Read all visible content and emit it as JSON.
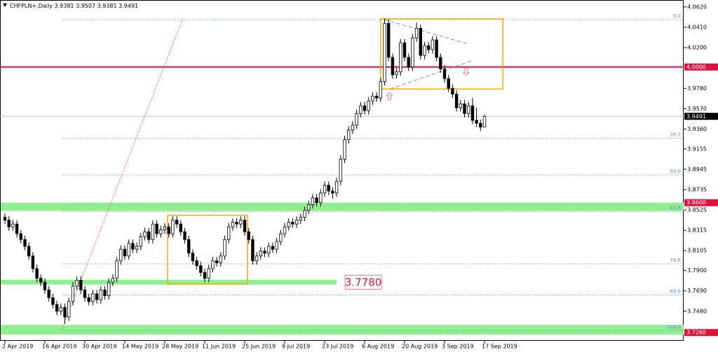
{
  "chart_data": {
    "type": "candlestick",
    "title": "CHFPLN+,Daily",
    "categories": [
      "2 Apr 2019",
      null,
      null,
      null,
      null,
      null,
      null,
      null,
      null,
      null,
      "16 Apr 2019",
      null,
      null,
      null,
      null,
      null,
      null,
      null,
      null,
      null,
      "30 Apr 2019",
      null,
      null,
      null,
      null,
      null,
      null,
      null,
      null,
      null,
      "14 May 2019",
      null,
      null,
      null,
      null,
      null,
      null,
      null,
      null,
      null,
      "28 May 2019",
      null,
      null,
      null,
      null,
      null,
      null,
      null,
      null,
      null,
      "11 Jun 2019",
      null,
      null,
      null,
      null,
      null,
      null,
      null,
      null,
      null,
      "25 Jun 2019",
      null,
      null,
      null,
      null,
      null,
      null,
      null,
      null,
      null,
      "9 Jul 2019",
      null,
      null,
      null,
      null,
      null,
      null,
      null,
      null,
      null,
      "23 Jul 2019",
      null,
      null,
      null,
      null,
      null,
      null,
      null,
      null,
      null,
      "6 Aug 2019",
      null,
      null,
      null,
      null,
      null,
      null,
      null,
      null,
      null,
      "20 Aug 2019",
      null,
      null,
      null,
      null,
      null,
      null,
      null,
      null,
      null,
      "3 Sep 2019",
      null,
      null,
      null,
      null,
      null,
      null,
      null,
      null,
      null,
      "17 Sep 2019"
    ],
    "candles": [
      [
        3.845,
        3.849,
        3.838,
        3.842
      ],
      [
        3.842,
        3.846,
        3.831,
        3.835
      ],
      [
        3.835,
        3.842,
        3.831,
        3.838
      ],
      [
        3.838,
        3.842,
        3.824,
        3.828
      ],
      [
        3.828,
        3.832,
        3.818,
        3.822
      ],
      [
        3.822,
        3.826,
        3.811,
        3.815
      ],
      [
        3.815,
        3.819,
        3.801,
        3.805
      ],
      [
        3.805,
        3.809,
        3.788,
        3.792
      ],
      [
        3.792,
        3.796,
        3.778,
        3.782
      ],
      [
        3.782,
        3.786,
        3.774,
        3.778
      ],
      [
        3.778,
        3.782,
        3.766,
        3.77
      ],
      [
        3.77,
        3.774,
        3.758,
        3.762
      ],
      [
        3.762,
        3.766,
        3.751,
        3.755
      ],
      [
        3.755,
        3.759,
        3.744,
        3.748
      ],
      [
        3.748,
        3.756,
        3.744,
        3.752
      ],
      [
        3.752,
        3.756,
        3.735,
        3.742
      ],
      [
        3.742,
        3.762,
        3.738,
        3.758
      ],
      [
        3.758,
        3.778,
        3.754,
        3.774
      ],
      [
        3.774,
        3.784,
        3.77,
        3.78
      ],
      [
        3.78,
        3.784,
        3.766,
        3.77
      ],
      [
        3.77,
        3.774,
        3.758,
        3.762
      ],
      [
        3.762,
        3.766,
        3.754,
        3.758
      ],
      [
        3.758,
        3.77,
        3.754,
        3.766
      ],
      [
        3.766,
        3.77,
        3.756,
        3.76
      ],
      [
        3.76,
        3.774,
        3.756,
        3.77
      ],
      [
        3.77,
        3.774,
        3.76,
        3.764
      ],
      [
        3.764,
        3.782,
        3.76,
        3.778
      ],
      [
        3.778,
        3.786,
        3.774,
        3.782
      ],
      [
        3.782,
        3.804,
        3.778,
        3.8
      ],
      [
        3.8,
        3.816,
        3.796,
        3.812
      ],
      [
        3.812,
        3.816,
        3.801,
        3.805
      ],
      [
        3.805,
        3.822,
        3.801,
        3.818
      ],
      [
        3.818,
        3.822,
        3.808,
        3.812
      ],
      [
        3.812,
        3.819,
        3.808,
        3.815
      ],
      [
        3.815,
        3.829,
        3.811,
        3.825
      ],
      [
        3.825,
        3.834,
        3.821,
        3.83
      ],
      [
        3.83,
        3.834,
        3.818,
        3.822
      ],
      [
        3.822,
        3.842,
        3.818,
        3.838
      ],
      [
        3.838,
        3.842,
        3.824,
        3.828
      ],
      [
        3.828,
        3.836,
        3.824,
        3.832
      ],
      [
        3.832,
        3.839,
        3.828,
        3.835
      ],
      [
        3.835,
        3.839,
        3.824,
        3.828
      ],
      [
        3.828,
        3.846,
        3.824,
        3.842
      ],
      [
        3.842,
        3.846,
        3.834,
        3.838
      ],
      [
        3.838,
        3.842,
        3.826,
        3.83
      ],
      [
        3.83,
        3.834,
        3.818,
        3.822
      ],
      [
        3.822,
        3.826,
        3.804,
        3.808
      ],
      [
        3.808,
        3.812,
        3.796,
        3.8
      ],
      [
        3.8,
        3.804,
        3.791,
        3.795
      ],
      [
        3.795,
        3.799,
        3.784,
        3.788
      ],
      [
        3.788,
        3.792,
        3.778,
        3.782
      ],
      [
        3.782,
        3.796,
        3.778,
        3.792
      ],
      [
        3.792,
        3.804,
        3.788,
        3.8
      ],
      [
        3.8,
        3.804,
        3.794,
        3.798
      ],
      [
        3.798,
        3.809,
        3.794,
        3.805
      ],
      [
        3.805,
        3.826,
        3.801,
        3.822
      ],
      [
        3.822,
        3.839,
        3.818,
        3.835
      ],
      [
        3.835,
        3.844,
        3.831,
        3.84
      ],
      [
        3.84,
        3.844,
        3.834,
        3.838
      ],
      [
        3.838,
        3.846,
        3.834,
        3.842
      ],
      [
        3.842,
        3.846,
        3.826,
        3.83
      ],
      [
        3.83,
        3.834,
        3.818,
        3.822
      ],
      [
        3.822,
        3.826,
        3.796,
        3.8
      ],
      [
        3.8,
        3.809,
        3.796,
        3.805
      ],
      [
        3.805,
        3.814,
        3.801,
        3.81
      ],
      [
        3.81,
        3.814,
        3.804,
        3.808
      ],
      [
        3.808,
        3.819,
        3.804,
        3.815
      ],
      [
        3.815,
        3.819,
        3.808,
        3.812
      ],
      [
        3.812,
        3.824,
        3.808,
        3.82
      ],
      [
        3.82,
        3.832,
        3.816,
        3.828
      ],
      [
        3.828,
        3.839,
        3.824,
        3.835
      ],
      [
        3.835,
        3.844,
        3.831,
        3.84
      ],
      [
        3.84,
        3.844,
        3.834,
        3.838
      ],
      [
        3.838,
        3.846,
        3.834,
        3.842
      ],
      [
        3.842,
        3.849,
        3.838,
        3.845
      ],
      [
        3.845,
        3.856,
        3.841,
        3.852
      ],
      [
        3.852,
        3.862,
        3.848,
        3.858
      ],
      [
        3.858,
        3.869,
        3.854,
        3.865
      ],
      [
        3.865,
        3.869,
        3.856,
        3.86
      ],
      [
        3.86,
        3.874,
        3.856,
        3.87
      ],
      [
        3.87,
        3.882,
        3.866,
        3.878
      ],
      [
        3.878,
        3.882,
        3.868,
        3.872
      ],
      [
        3.872,
        3.876,
        3.864,
        3.87
      ],
      [
        3.87,
        3.886,
        3.866,
        3.882
      ],
      [
        3.882,
        3.909,
        3.878,
        3.905
      ],
      [
        3.905,
        3.929,
        3.901,
        3.925
      ],
      [
        3.925,
        3.939,
        3.921,
        3.935
      ],
      [
        3.935,
        3.944,
        3.931,
        3.94
      ],
      [
        3.94,
        3.956,
        3.936,
        3.952
      ],
      [
        3.952,
        3.964,
        3.948,
        3.96
      ],
      [
        3.96,
        3.964,
        3.951,
        3.955
      ],
      [
        3.955,
        3.969,
        3.951,
        3.965
      ],
      [
        3.965,
        3.974,
        3.961,
        3.97
      ],
      [
        3.97,
        3.974,
        3.964,
        3.968
      ],
      [
        3.968,
        3.989,
        3.964,
        3.985
      ],
      [
        3.985,
        4.05,
        3.981,
        4.045
      ],
      [
        4.045,
        4.049,
        4.006,
        4.01
      ],
      [
        4.01,
        4.014,
        3.988,
        3.992
      ],
      [
        3.992,
        3.999,
        3.988,
        3.995
      ],
      [
        3.995,
        4.029,
        3.991,
        4.025
      ],
      [
        4.025,
        4.029,
        4.006,
        4.01
      ],
      [
        4.01,
        4.014,
        3.996,
        4
      ],
      [
        4,
        4.034,
        3.996,
        4.03
      ],
      [
        4.03,
        4.046,
        4.026,
        4.04
      ],
      [
        4.04,
        4.044,
        4.008,
        4.012
      ],
      [
        4.012,
        4.026,
        4.008,
        4.022
      ],
      [
        4.022,
        4.026,
        4.014,
        4.018
      ],
      [
        4.018,
        4.032,
        4.014,
        4.028
      ],
      [
        4.028,
        4.032,
        4.006,
        4.01
      ],
      [
        4.01,
        4.014,
        3.994,
        3.998
      ],
      [
        3.998,
        4.002,
        3.984,
        3.988
      ],
      [
        3.988,
        3.992,
        3.974,
        3.978
      ],
      [
        3.978,
        3.982,
        3.968,
        3.972
      ],
      [
        3.972,
        3.976,
        3.954,
        3.958
      ],
      [
        3.958,
        3.966,
        3.954,
        3.962
      ],
      [
        3.962,
        3.966,
        3.948,
        3.952
      ],
      [
        3.952,
        3.964,
        3.948,
        3.96
      ],
      [
        3.96,
        3.968,
        3.941,
        3.945
      ],
      [
        3.945,
        3.958,
        3.938,
        3.942
      ],
      [
        3.942,
        3.946,
        3.934,
        3.938
      ],
      [
        3.9381,
        3.9507,
        3.9381,
        3.9491
      ]
    ],
    "ylim": [
      3.7175,
      4.067
    ],
    "yticks": [
      {
        "value": 4.062,
        "label": "4.0620"
      },
      {
        "value": 4.041,
        "label": "4.0410"
      },
      {
        "value": 4.02,
        "label": "4.0200"
      },
      {
        "value": 3.978,
        "label": "3.9780"
      },
      {
        "value": 3.957,
        "label": "3.9570"
      },
      {
        "value": 3.936,
        "label": "3.9360"
      },
      3.9155,
      3.8945,
      3.8735,
      3.8525,
      3.8315,
      3.8105,
      {
        "value": 3.79,
        "label": "3.7900"
      },
      {
        "value": 3.769,
        "label": "3.7690"
      },
      {
        "value": 3.748,
        "label": "3.7480"
      }
    ],
    "hline": {
      "value": 4,
      "label": "4.0000",
      "color": "#dc143c"
    },
    "zones": [
      {
        "top": 3.86,
        "bottom": 3.8515,
        "end": null,
        "label": {
          "value": 3.86,
          "label": "3.8600"
        }
      },
      {
        "top": 3.7805,
        "bottom": 3.7755,
        "end": 83,
        "label": {
          "value": 3.778,
          "label": "3.7780"
        }
      },
      {
        "top": 3.734,
        "bottom": 3.724,
        "end": null,
        "label": {
          "value": 3.726,
          "label": "3.7260"
        }
      }
    ],
    "zone_color": "#90ee90",
    "rectangles": [
      {
        "x0": 40.7,
        "x1": 60.7,
        "top": 3.847,
        "bottom": 3.776
      },
      {
        "x0": 94,
        "x1": 124.6,
        "top": 4.0497,
        "bottom": 3.9773
      }
    ],
    "rect_color": "#ffa500",
    "triangle": [
      {
        "x0": 94.9,
        "y0": 4.049,
        "x1": 116,
        "y1": 4.0236
      },
      {
        "x0": 96.3,
        "y0": 3.9773,
        "x1": 116.7,
        "y1": 4.0062
      }
    ],
    "trend_line": {
      "x0": 14.2,
      "y0": 3.729,
      "x1": 44.4,
      "y1": 4.049,
      "color": "#ff0000"
    },
    "arrows": [
      {
        "x": 96.2,
        "value": 3.97,
        "dir": "up"
      },
      {
        "x": 115.4,
        "value": 3.995,
        "dir": "down"
      }
    ],
    "fibonacci": {
      "start": 14.2,
      "levels": [
        {
          "label": "0.0",
          "value": 4.049
        },
        {
          "label": "38.2",
          "value": 3.9264
        },
        {
          "label": "50.0",
          "value": 3.8886
        },
        {
          "label": "61.8",
          "value": 3.8508
        },
        {
          "label": "78.6",
          "value": 3.7969
        },
        {
          "label": "88.6",
          "value": 3.7648
        },
        {
          "label": "100.0",
          "value": 3.728
        }
      ]
    }
  }
}
